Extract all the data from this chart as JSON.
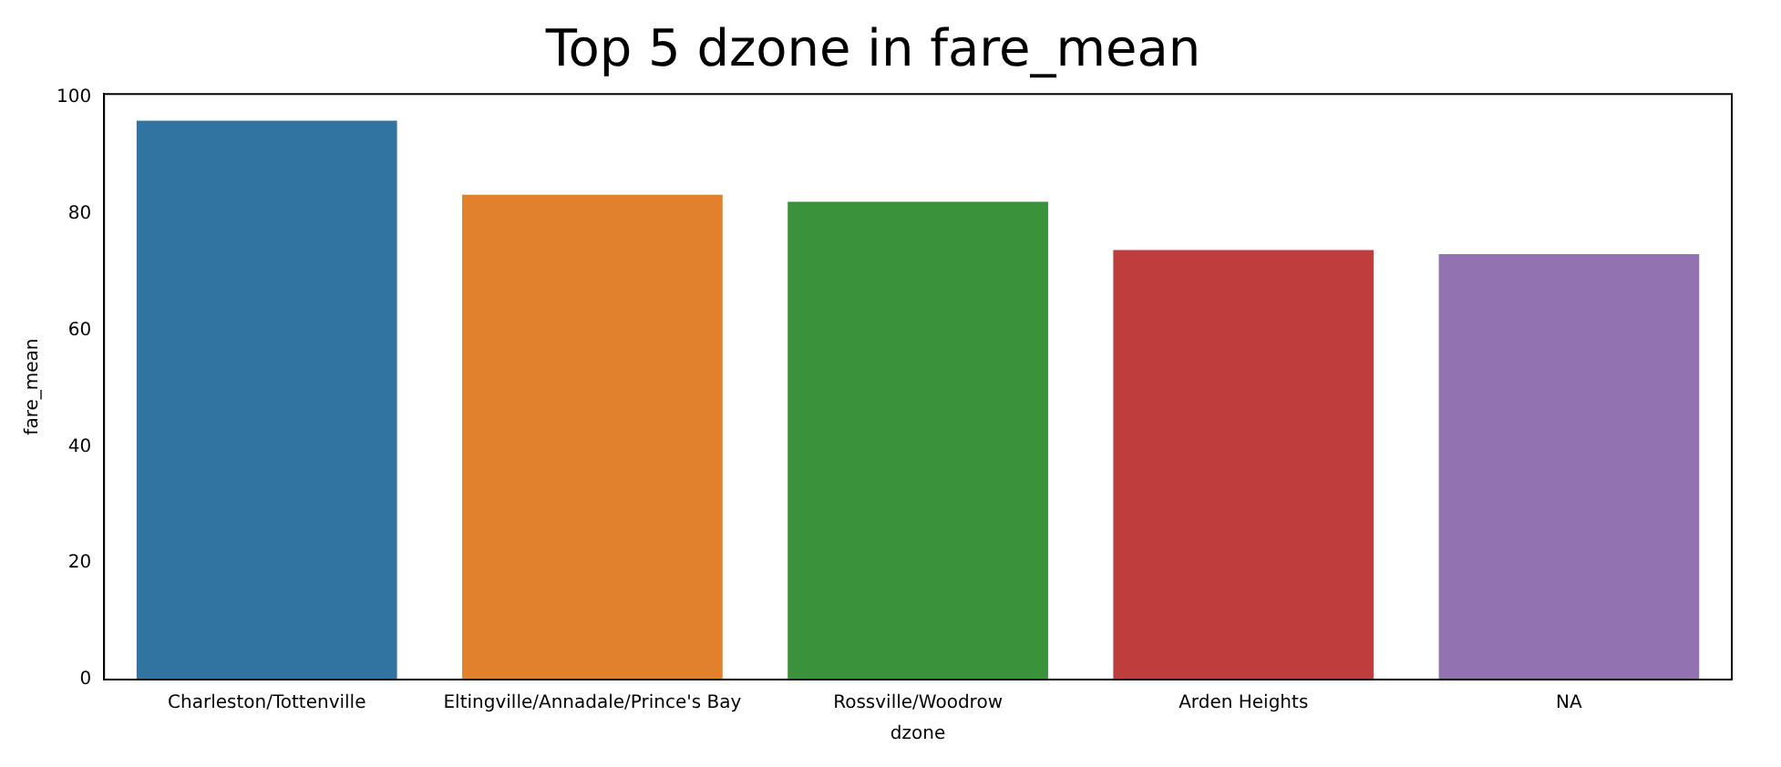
{
  "chart_data": {
    "type": "bar",
    "title": "Top 5 dzone in fare_mean",
    "xlabel": "dzone",
    "ylabel": "fare_mean",
    "categories": [
      "Charleston/Tottenville",
      "Eltingville/Annadale/Prince's Bay",
      "Rossville/Woodrow",
      "Arden Heights",
      "NA"
    ],
    "values": [
      96.0,
      83.3,
      82.1,
      73.8,
      73.1
    ],
    "colors": [
      "#3274a1",
      "#e1812c",
      "#3a923a",
      "#c03d3e",
      "#9372b2"
    ],
    "ylim": [
      0,
      100.6
    ],
    "yticks": [
      0,
      20,
      40,
      60,
      80,
      100
    ],
    "grid": false,
    "legend": false
  }
}
